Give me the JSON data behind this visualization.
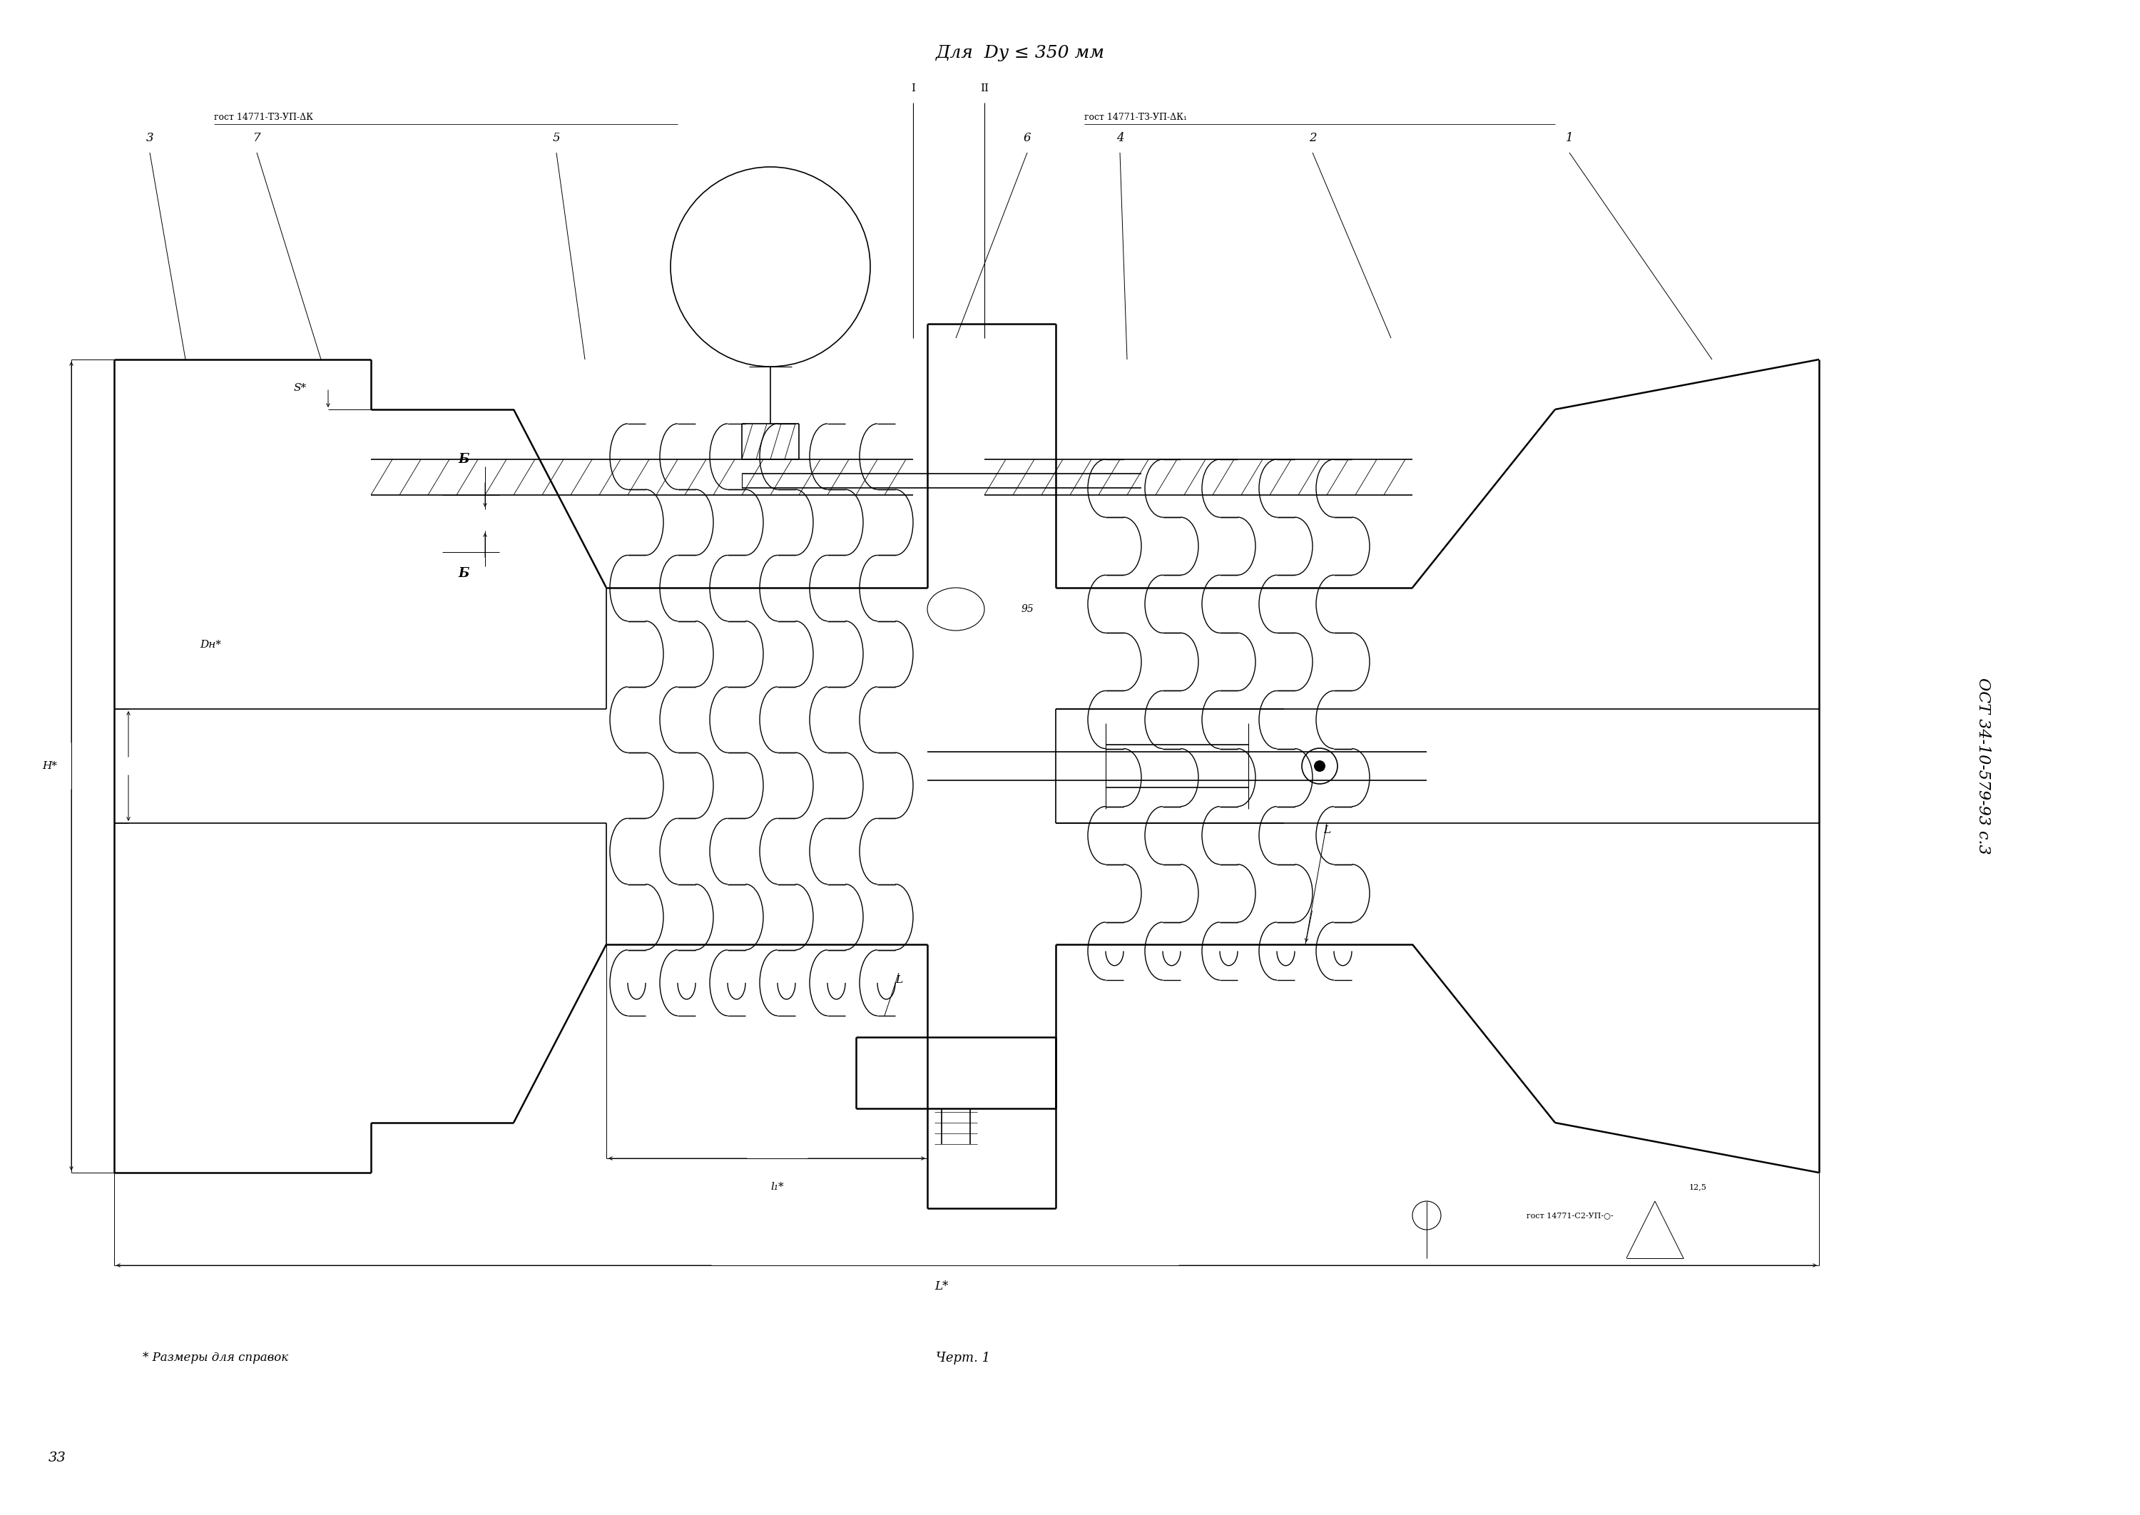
{
  "bg_color": "#ffffff",
  "line_color": "#000000",
  "title_text": "Для  Dy ≤ 350 мм",
  "label_gost_left": "гост 14771-ТЗ-УП-ΔК",
  "label_gost_right": "гост 14771-ТЗ-УП-ΔК₁",
  "label_gost_bottom": "гост 14771-С2-УП-○-",
  "side_text": "ОСТ 34-10-579-93 с.3",
  "bottom_note": "* Размеры для справок",
  "bottom_label": "Черт. 1",
  "page_number": "33",
  "roughness": "12,5"
}
